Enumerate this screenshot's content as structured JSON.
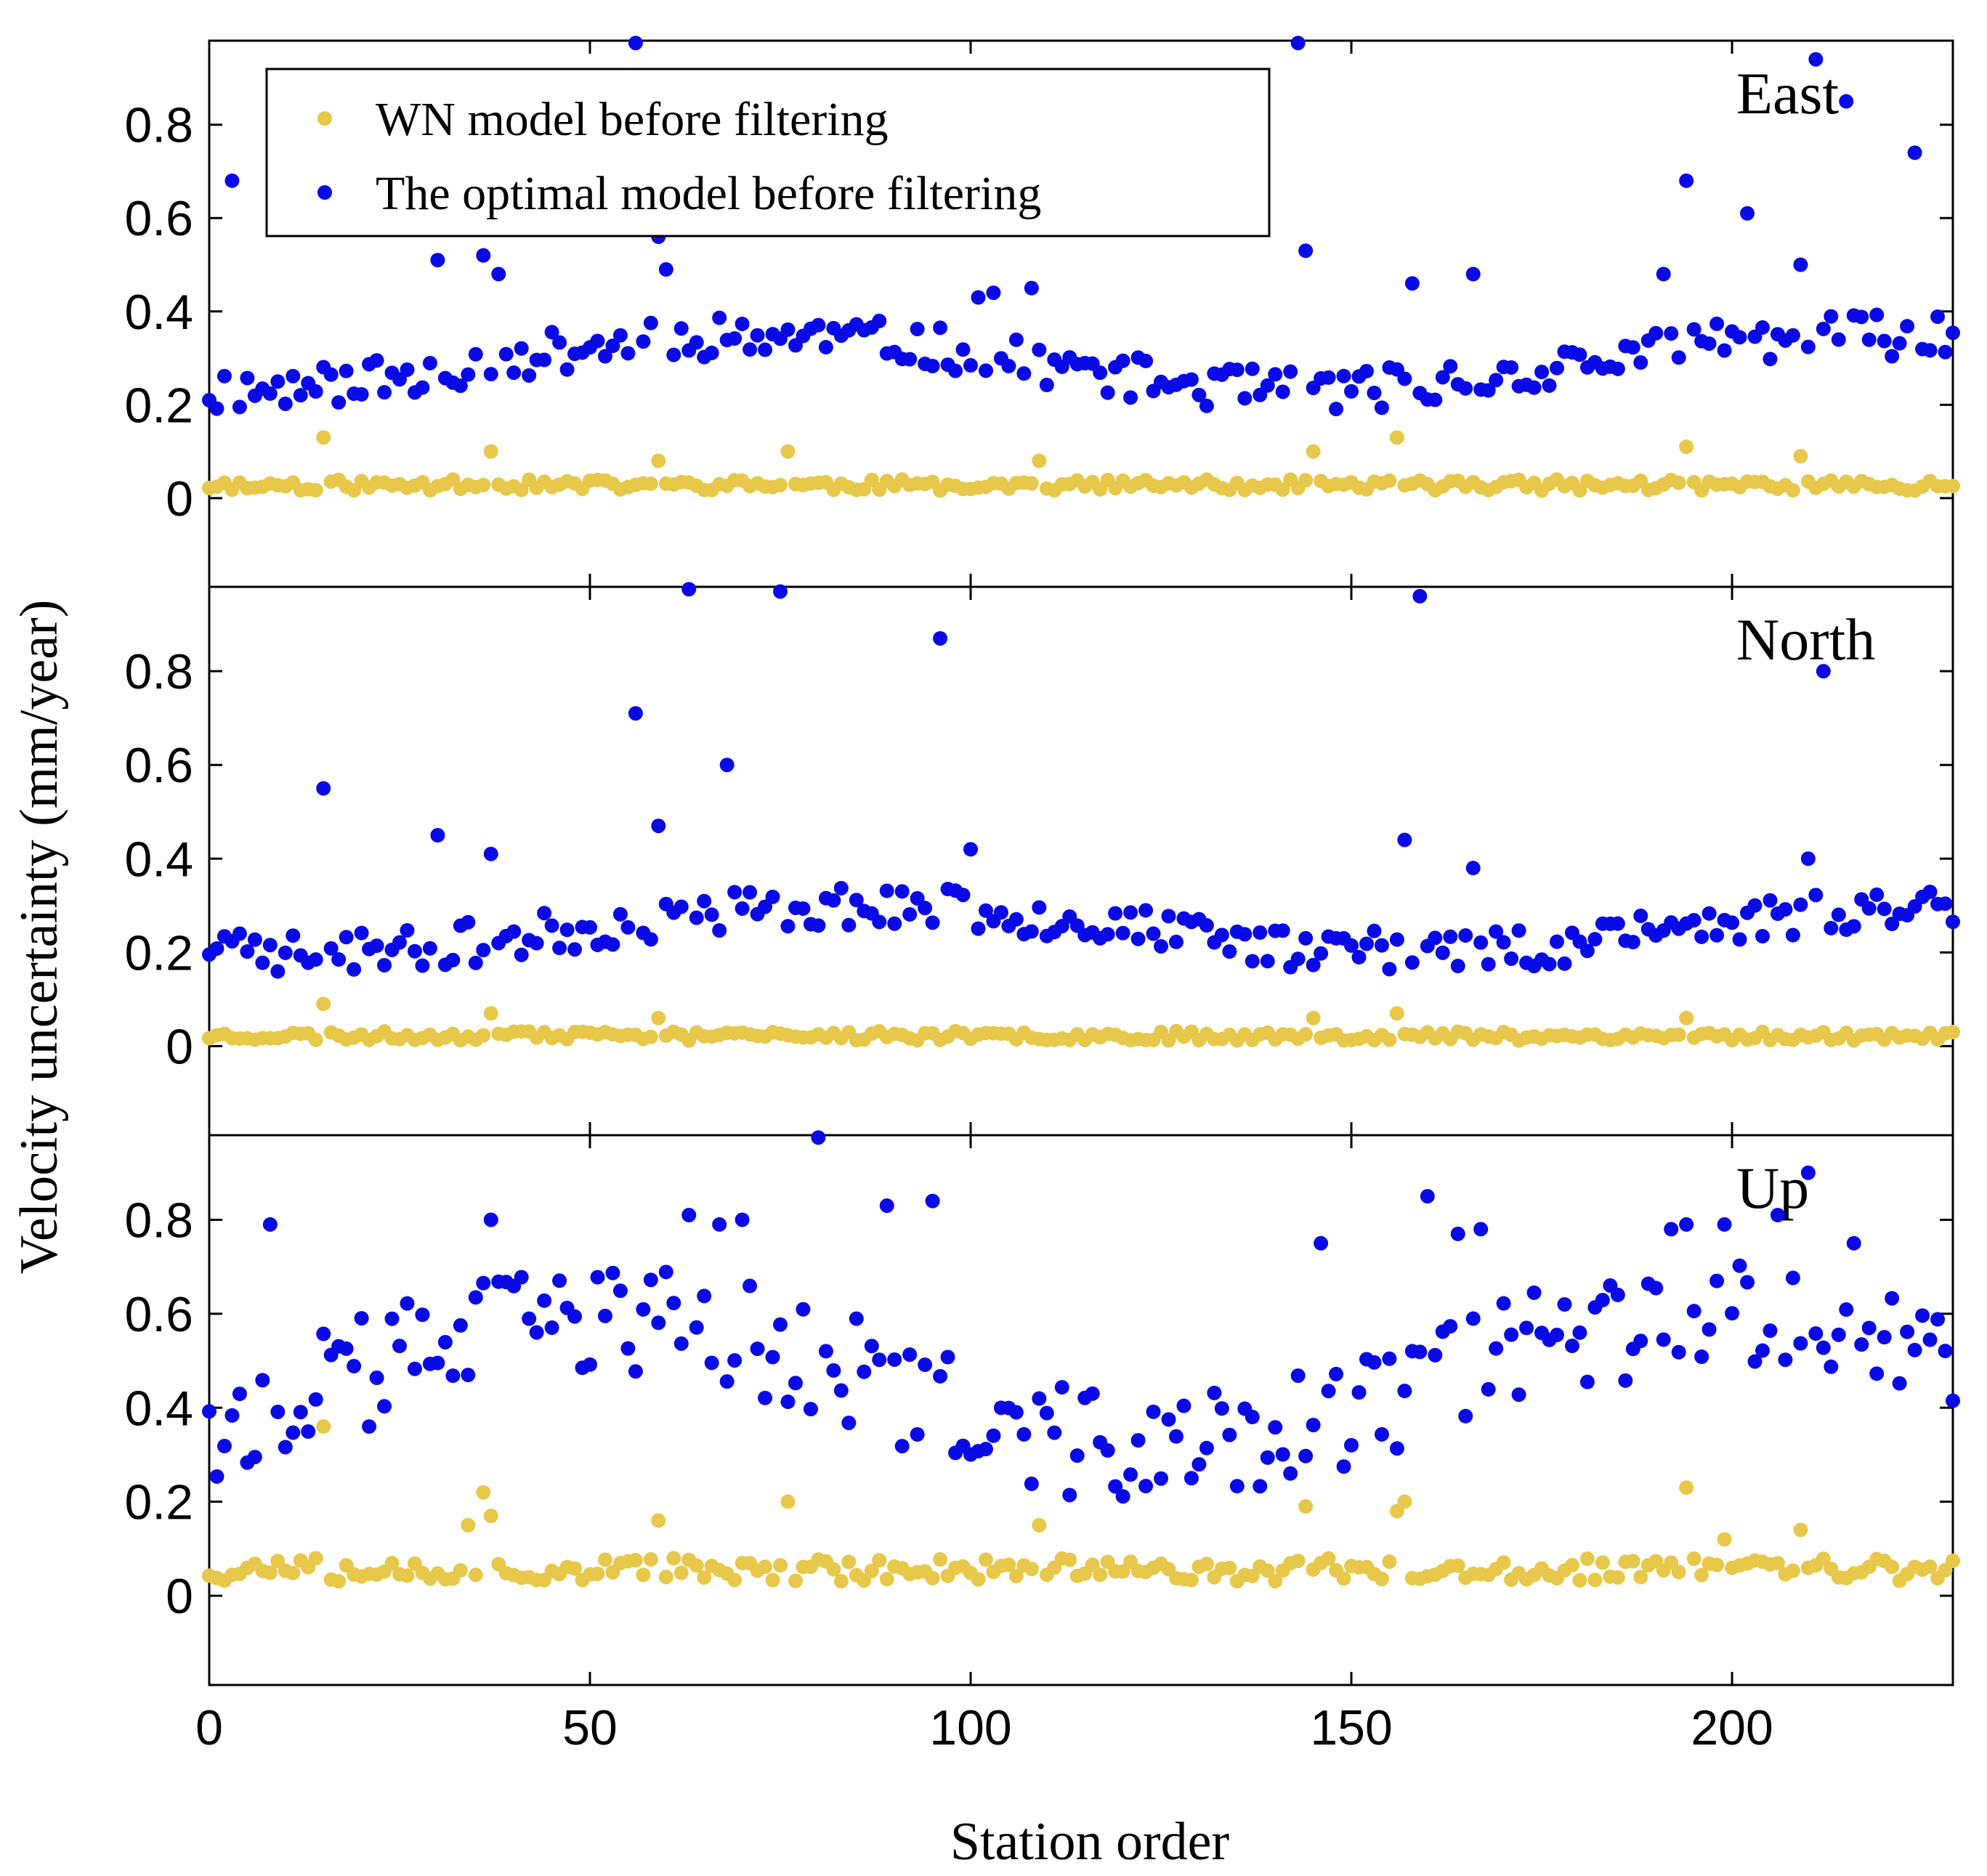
{
  "chart_data": {
    "type": "scatter",
    "xlabel": "Station order",
    "ylabel": "Velocity uncertainty (mm/year)",
    "xlim": [
      0,
      229
    ],
    "ylim": [
      -0.19,
      0.98
    ],
    "xticks": [
      0,
      50,
      100,
      150,
      200
    ],
    "yticks": [
      0,
      0.2,
      0.4,
      0.6,
      0.8
    ],
    "ytick_labels": [
      "0",
      "0.2",
      "0.4",
      "0.6",
      "0.8"
    ],
    "legend": {
      "position": "top-left",
      "entries": [
        {
          "name": "WN model before filtering",
          "color": "#E8C84A"
        },
        {
          "name": "The optimal model before filtering",
          "color": "#0A0AE6"
        }
      ]
    },
    "panels": [
      {
        "label": "East",
        "seed": 11,
        "optimal": {
          "base": 0.29,
          "amp": 0.06,
          "noise": 0.045,
          "outliers": [
            [
              3,
              0.68
            ],
            [
              30,
              0.51
            ],
            [
              36,
              0.52
            ],
            [
              38,
              0.48
            ],
            [
              56,
              0.98
            ],
            [
              59,
              0.56
            ],
            [
              60,
              0.49
            ],
            [
              101,
              0.43
            ],
            [
              103,
              0.44
            ],
            [
              108,
              0.45
            ],
            [
              143,
              0.98
            ],
            [
              144,
              0.53
            ],
            [
              158,
              0.46
            ],
            [
              166,
              0.48
            ],
            [
              191,
              0.48
            ],
            [
              194,
              0.68
            ],
            [
              202,
              0.61
            ],
            [
              209,
              0.5
            ],
            [
              211,
              0.94
            ],
            [
              215,
              0.85
            ],
            [
              224,
              0.74
            ]
          ]
        },
        "wn": {
          "base": 0.028,
          "noise": 0.012,
          "outliers": [
            [
              15,
              0.13
            ],
            [
              37,
              0.1
            ],
            [
              59,
              0.08
            ],
            [
              76,
              0.1
            ],
            [
              109,
              0.08
            ],
            [
              145,
              0.1
            ],
            [
              156,
              0.13
            ],
            [
              194,
              0.11
            ],
            [
              209,
              0.09
            ]
          ]
        }
      },
      {
        "label": "North",
        "seed": 23,
        "optimal": {
          "base": 0.25,
          "amp": 0.05,
          "noise": 0.045,
          "outliers": [
            [
              15,
              0.55
            ],
            [
              30,
              0.45
            ],
            [
              37,
              0.41
            ],
            [
              56,
              0.71
            ],
            [
              59,
              0.47
            ],
            [
              63,
              0.98
            ],
            [
              68,
              0.6
            ],
            [
              75,
              0.97
            ],
            [
              96,
              0.87
            ],
            [
              100,
              0.42
            ],
            [
              157,
              0.44
            ],
            [
              159,
              0.96
            ],
            [
              166,
              0.38
            ],
            [
              210,
              0.4
            ],
            [
              212,
              0.8
            ]
          ]
        },
        "wn": {
          "base": 0.022,
          "noise": 0.01,
          "outliers": [
            [
              15,
              0.09
            ],
            [
              37,
              0.07
            ],
            [
              59,
              0.06
            ],
            [
              145,
              0.06
            ],
            [
              156,
              0.07
            ],
            [
              194,
              0.06
            ]
          ]
        }
      },
      {
        "label": "Up",
        "seed": 37,
        "optimal": {
          "base": 0.45,
          "amp": 0.14,
          "noise": 0.12,
          "outliers": [
            [
              8,
              0.79
            ],
            [
              37,
              0.8
            ],
            [
              63,
              0.81
            ],
            [
              67,
              0.79
            ],
            [
              70,
              0.8
            ],
            [
              80,
              0.98
            ],
            [
              89,
              0.83
            ],
            [
              95,
              0.84
            ],
            [
              146,
              0.75
            ],
            [
              160,
              0.85
            ],
            [
              164,
              0.77
            ],
            [
              167,
              0.78
            ],
            [
              192,
              0.78
            ],
            [
              194,
              0.79
            ],
            [
              199,
              0.79
            ],
            [
              206,
              0.81
            ],
            [
              210,
              0.9
            ],
            [
              216,
              0.75
            ]
          ]
        },
        "wn": {
          "base": 0.055,
          "noise": 0.025,
          "outliers": [
            [
              15,
              0.36
            ],
            [
              34,
              0.15
            ],
            [
              36,
              0.22
            ],
            [
              37,
              0.17
            ],
            [
              59,
              0.16
            ],
            [
              76,
              0.2
            ],
            [
              109,
              0.15
            ],
            [
              144,
              0.19
            ],
            [
              156,
              0.18
            ],
            [
              157,
              0.2
            ],
            [
              194,
              0.23
            ],
            [
              199,
              0.12
            ],
            [
              209,
              0.14
            ]
          ]
        }
      }
    ]
  }
}
